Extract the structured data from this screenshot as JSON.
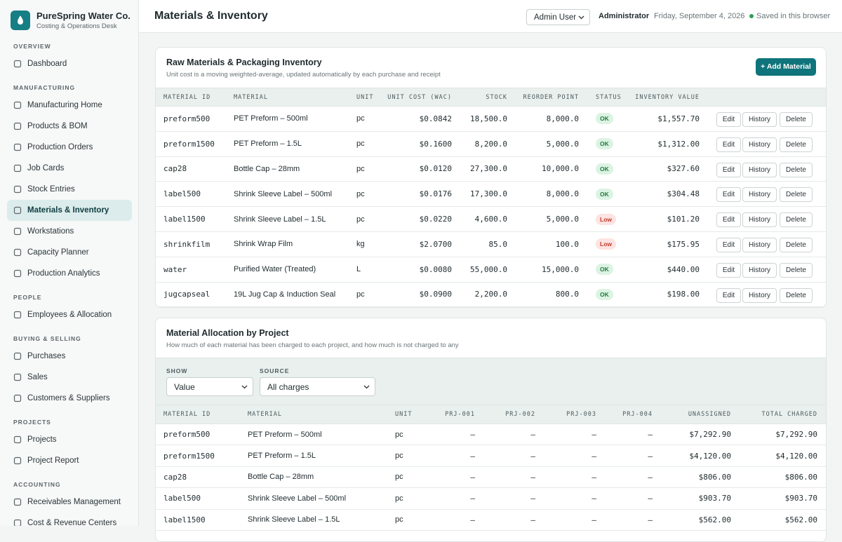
{
  "brand": {
    "name": "PureSpring Water Co.",
    "subtitle": "Costing & Operations Desk"
  },
  "nav": [
    {
      "title": "OVERVIEW",
      "items": [
        {
          "label": "Dashboard"
        }
      ]
    },
    {
      "title": "MANUFACTURING",
      "items": [
        {
          "label": "Manufacturing Home"
        },
        {
          "label": "Products & BOM"
        },
        {
          "label": "Production Orders"
        },
        {
          "label": "Job Cards"
        },
        {
          "label": "Stock Entries"
        },
        {
          "label": "Materials & Inventory",
          "active": true
        },
        {
          "label": "Workstations"
        },
        {
          "label": "Capacity Planner"
        },
        {
          "label": "Production Analytics"
        }
      ]
    },
    {
      "title": "PEOPLE",
      "items": [
        {
          "label": "Employees & Allocation"
        }
      ]
    },
    {
      "title": "BUYING & SELLING",
      "items": [
        {
          "label": "Purchases"
        },
        {
          "label": "Sales"
        },
        {
          "label": "Customers & Suppliers"
        }
      ]
    },
    {
      "title": "PROJECTS",
      "items": [
        {
          "label": "Projects"
        },
        {
          "label": "Project Report"
        }
      ]
    },
    {
      "title": "ACCOUNTING",
      "items": [
        {
          "label": "Receivables Management"
        },
        {
          "label": "Cost & Revenue Centers"
        }
      ]
    }
  ],
  "header": {
    "title": "Materials & Inventory",
    "user_select": "Admin User",
    "role": "Administrator",
    "date": "Friday, September 4, 2026",
    "saved": "Saved in this browser"
  },
  "inventory": {
    "title": "Raw Materials & Packaging Inventory",
    "subtitle": "Unit cost is a moving weighted-average, updated automatically by each purchase and receipt",
    "add_button": "+ Add Material",
    "columns": [
      "MATERIAL ID",
      "MATERIAL",
      "UNIT",
      "UNIT COST (WAC)",
      "STOCK",
      "REORDER POINT",
      "STATUS",
      "INVENTORY VALUE"
    ],
    "actions": [
      "Edit",
      "History",
      "Delete"
    ],
    "rows": [
      [
        "preform500",
        "PET Preform – 500ml",
        "pc",
        "$0.0842",
        "18,500.0",
        "8,000.0",
        "OK",
        "$1,557.70"
      ],
      [
        "preform1500",
        "PET Preform – 1.5L",
        "pc",
        "$0.1600",
        "8,200.0",
        "5,000.0",
        "OK",
        "$1,312.00"
      ],
      [
        "cap28",
        "Bottle Cap – 28mm",
        "pc",
        "$0.0120",
        "27,300.0",
        "10,000.0",
        "OK",
        "$327.60"
      ],
      [
        "label500",
        "Shrink Sleeve Label – 500ml",
        "pc",
        "$0.0176",
        "17,300.0",
        "8,000.0",
        "OK",
        "$304.48"
      ],
      [
        "label1500",
        "Shrink Sleeve Label – 1.5L",
        "pc",
        "$0.0220",
        "4,600.0",
        "5,000.0",
        "Low",
        "$101.20"
      ],
      [
        "shrinkfilm",
        "Shrink Wrap Film",
        "kg",
        "$2.0700",
        "85.0",
        "100.0",
        "Low",
        "$175.95"
      ],
      [
        "water",
        "Purified Water (Treated)",
        "L",
        "$0.0080",
        "55,000.0",
        "15,000.0",
        "OK",
        "$440.00"
      ],
      [
        "jugcapseal",
        "19L Jug Cap & Induction Seal",
        "pc",
        "$0.0900",
        "2,200.0",
        "800.0",
        "OK",
        "$198.00"
      ]
    ]
  },
  "allocation": {
    "title": "Material Allocation by Project",
    "subtitle": "How much of each material has been charged to each project, and how much is not charged to any",
    "filters": [
      {
        "label": "SHOW",
        "value": "Value"
      },
      {
        "label": "SOURCE",
        "value": "All charges"
      }
    ],
    "columns": [
      "MATERIAL ID",
      "MATERIAL",
      "UNIT",
      "PRJ-001",
      "PRJ-002",
      "PRJ-003",
      "PRJ-004",
      "UNASSIGNED",
      "TOTAL CHARGED"
    ],
    "rows": [
      [
        "preform500",
        "PET Preform – 500ml",
        "pc",
        "—",
        "—",
        "—",
        "—",
        "$7,292.90",
        "$7,292.90"
      ],
      [
        "preform1500",
        "PET Preform – 1.5L",
        "pc",
        "—",
        "—",
        "—",
        "—",
        "$4,120.00",
        "$4,120.00"
      ],
      [
        "cap28",
        "Bottle Cap – 28mm",
        "pc",
        "—",
        "—",
        "—",
        "—",
        "$806.00",
        "$806.00"
      ],
      [
        "label500",
        "Shrink Sleeve Label – 500ml",
        "pc",
        "—",
        "—",
        "—",
        "—",
        "$903.70",
        "$903.70"
      ],
      [
        "label1500",
        "Shrink Sleeve Label – 1.5L",
        "pc",
        "—",
        "—",
        "—",
        "—",
        "$562.00",
        "$562.00"
      ]
    ]
  }
}
